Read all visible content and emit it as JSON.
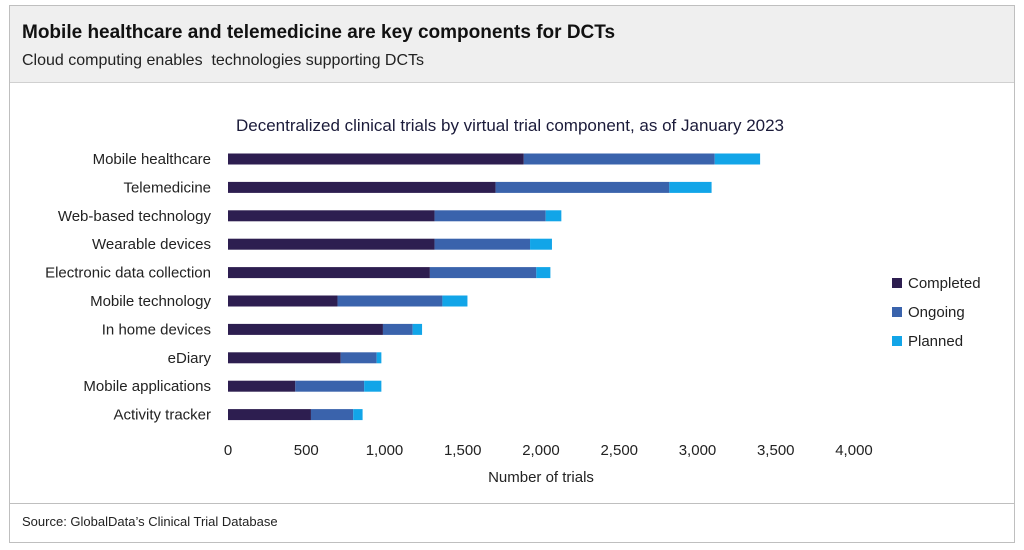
{
  "header": {
    "title": "Mobile healthcare and telemedicine are key components for DCTs",
    "subtitle": "Cloud computing enables  technologies supporting DCTs"
  },
  "footer": {
    "source": "Source: GlobalData’s Clinical Trial Database"
  },
  "chart_data": {
    "type": "bar",
    "orientation": "horizontal",
    "stacked": true,
    "title": "Decentralized clinical trials by virtual trial component, as of January 2023",
    "xlabel": "Number of trials",
    "ylabel": "",
    "xlim": [
      0,
      4000
    ],
    "xticks": [
      0,
      500,
      1000,
      1500,
      2000,
      2500,
      3000,
      3500,
      4000
    ],
    "xtick_labels": [
      "0",
      "500",
      "1,000",
      "1,500",
      "2,000",
      "2,500",
      "3,000",
      "3,500",
      "4,000"
    ],
    "grid": false,
    "legend_position": "right",
    "categories": [
      "Mobile healthcare",
      "Telemedicine",
      "Web-based technology",
      "Wearable devices",
      "Electronic data collection",
      "Mobile technology",
      "In home devices",
      "eDiary",
      "Mobile applications",
      "Activity tracker"
    ],
    "series": [
      {
        "name": "Completed",
        "color": "#2d1e50",
        "values": [
          1890,
          1710,
          1320,
          1320,
          1290,
          700,
          990,
          720,
          430,
          530
        ]
      },
      {
        "name": "Ongoing",
        "color": "#3a63ac",
        "values": [
          1220,
          1110,
          710,
          610,
          680,
          670,
          190,
          230,
          440,
          270
        ]
      },
      {
        "name": "Planned",
        "color": "#12a5e8",
        "values": [
          290,
          270,
          100,
          140,
          90,
          160,
          60,
          30,
          110,
          60
        ]
      }
    ]
  }
}
